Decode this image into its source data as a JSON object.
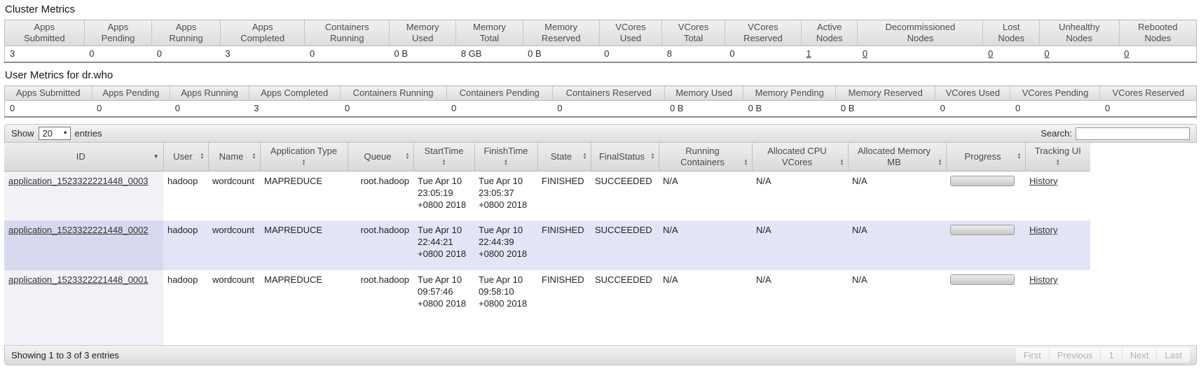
{
  "titles": {
    "cluster": "Cluster Metrics",
    "user": "User Metrics for dr.who"
  },
  "cluster_metrics": {
    "columns": [
      "Apps\nSubmitted",
      "Apps\nPending",
      "Apps\nRunning",
      "Apps\nCompleted",
      "Containers\nRunning",
      "Memory\nUsed",
      "Memory\nTotal",
      "Memory\nReserved",
      "VCores\nUsed",
      "VCores\nTotal",
      "VCores\nReserved",
      "Active\nNodes",
      "Decommissioned\nNodes",
      "Lost\nNodes",
      "Unhealthy\nNodes",
      "Rebooted\nNodes"
    ],
    "values": [
      {
        "text": "3"
      },
      {
        "text": "0"
      },
      {
        "text": "0"
      },
      {
        "text": "3"
      },
      {
        "text": "0"
      },
      {
        "text": "0 B"
      },
      {
        "text": "8 GB"
      },
      {
        "text": "0 B"
      },
      {
        "text": "0"
      },
      {
        "text": "8"
      },
      {
        "text": "0"
      },
      {
        "text": "1",
        "link": true
      },
      {
        "text": "0",
        "link": true
      },
      {
        "text": "0",
        "link": true
      },
      {
        "text": "0",
        "link": true
      },
      {
        "text": "0",
        "link": true
      }
    ]
  },
  "user_metrics": {
    "columns": [
      "Apps Submitted",
      "Apps Pending",
      "Apps Running",
      "Apps Completed",
      "Containers Running",
      "Containers Pending",
      "Containers Reserved",
      "Memory Used",
      "Memory Pending",
      "Memory Reserved",
      "VCores Used",
      "VCores Pending",
      "VCores Reserved"
    ],
    "values": [
      "0",
      "0",
      "0",
      "3",
      "0",
      "0",
      "0",
      "0 B",
      "0 B",
      "0 B",
      "0",
      "0",
      "0"
    ]
  },
  "toolbar": {
    "show_label": "Show",
    "page_size": "20",
    "entries_label": "entries",
    "search_label": "Search:",
    "search_value": ""
  },
  "apps_table": {
    "columns": [
      {
        "key": "id",
        "label": "ID",
        "sort": "desc",
        "icon_style": "right"
      },
      {
        "key": "user",
        "label": "User",
        "sort": "both",
        "icon_style": "right"
      },
      {
        "key": "name",
        "label": "Name",
        "sort": "both",
        "icon_style": "right"
      },
      {
        "key": "type",
        "label": "Application Type",
        "sort": "both",
        "icon_style": "below"
      },
      {
        "key": "queue",
        "label": "Queue",
        "sort": "both",
        "icon_style": "right"
      },
      {
        "key": "start",
        "label": "StartTime",
        "sort": "both",
        "icon_style": "below"
      },
      {
        "key": "finish",
        "label": "FinishTime",
        "sort": "both",
        "icon_style": "below"
      },
      {
        "key": "state",
        "label": "State",
        "sort": "both",
        "icon_style": "right"
      },
      {
        "key": "final",
        "label": "FinalStatus",
        "sort": "both",
        "icon_style": "right"
      },
      {
        "key": "containers",
        "label": "Running Containers",
        "sort": "both",
        "icon_style": "right-low"
      },
      {
        "key": "vcores",
        "label": "Allocated CPU VCores",
        "sort": "both",
        "icon_style": "right-low"
      },
      {
        "key": "memory",
        "label": "Allocated Memory MB",
        "sort": "both",
        "icon_style": "right-low"
      },
      {
        "key": "progress",
        "label": "Progress",
        "sort": "both",
        "icon_style": "right"
      },
      {
        "key": "tracking",
        "label": "Tracking UI",
        "sort": "both",
        "icon_style": "below"
      }
    ],
    "rows": [
      {
        "id": "application_1523322221448_0003",
        "user": "hadoop",
        "name": "wordcount",
        "type": "MAPREDUCE",
        "queue": "root.hadoop",
        "start": "Tue Apr 10 23:05:19 +0800 2018",
        "finish": "Tue Apr 10 23:05:37 +0800 2018",
        "state": "FINISHED",
        "final": "SUCCEEDED",
        "containers": "N/A",
        "vcores": "N/A",
        "memory": "N/A",
        "progress_percent": 100,
        "tracking": "History"
      },
      {
        "id": "application_1523322221448_0002",
        "user": "hadoop",
        "name": "wordcount",
        "type": "MAPREDUCE",
        "queue": "root.hadoop",
        "start": "Tue Apr 10 22:44:21 +0800 2018",
        "finish": "Tue Apr 10 22:44:39 +0800 2018",
        "state": "FINISHED",
        "final": "SUCCEEDED",
        "containers": "N/A",
        "vcores": "N/A",
        "memory": "N/A",
        "progress_percent": 100,
        "tracking": "History"
      },
      {
        "id": "application_1523322221448_0001",
        "user": "hadoop",
        "name": "wordcount",
        "type": "MAPREDUCE",
        "queue": "root.hadoop",
        "start": "Tue Apr 10 09:57:46 +0800 2018",
        "finish": "Tue Apr 10 09:58:10 +0800 2018",
        "state": "FINISHED",
        "final": "SUCCEEDED",
        "containers": "N/A",
        "vcores": "N/A",
        "memory": "N/A",
        "progress_percent": 100,
        "tracking": "History"
      }
    ]
  },
  "footer": {
    "info": "Showing 1 to 3 of 3 entries",
    "pagination": [
      "First",
      "Previous",
      "1",
      "Next",
      "Last"
    ]
  },
  "icons": {
    "sort_desc": "▼",
    "sort_up": "▲",
    "sort_down": "▼",
    "select_arrow": "▼"
  },
  "colors": {
    "stripe_row": "#e3e5f7",
    "stripe_sorted_cell": "#d7daee",
    "sorted_plain_cell": "#f1f1f7",
    "link": "#333333",
    "header_text": "#4a4a4a"
  }
}
